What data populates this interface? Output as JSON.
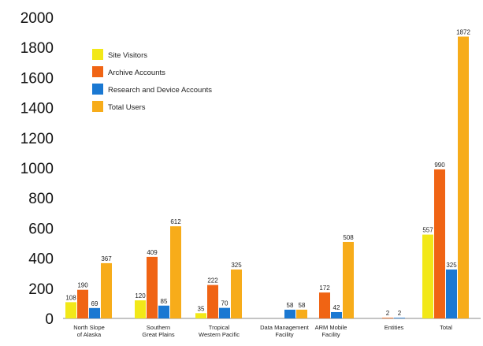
{
  "chart_data": {
    "type": "bar",
    "categories": [
      [
        "North Slope",
        "of Alaska"
      ],
      [
        "Southern",
        "Great Plains"
      ],
      [
        "Tropical",
        "Western Pacific"
      ],
      [
        "Data Management",
        "Facility"
      ],
      [
        "ARM Mobile",
        "Facility"
      ],
      [
        "Entities"
      ],
      [
        "Total"
      ]
    ],
    "series": [
      {
        "name": "Site Visitors",
        "color": "#f2e818",
        "values": [
          108,
          120,
          35,
          null,
          null,
          null,
          557
        ]
      },
      {
        "name": "Archive Accounts",
        "color": "#f06414",
        "values": [
          190,
          409,
          222,
          null,
          172,
          2,
          990
        ]
      },
      {
        "name": "Research and Device Accounts",
        "color": "#1a78d2",
        "values": [
          69,
          85,
          70,
          58,
          42,
          2,
          325
        ]
      },
      {
        "name": "Total Users",
        "color": "#f7ac1a",
        "values": [
          367,
          612,
          325,
          58,
          508,
          null,
          1872
        ]
      }
    ],
    "yticks": [
      0,
      200,
      400,
      600,
      800,
      1000,
      1200,
      1400,
      1600,
      1800,
      2000
    ],
    "ylim": [
      0,
      2000
    ],
    "legend_position": "top-left",
    "grid": false,
    "title": "",
    "xlabel": "",
    "ylabel": ""
  }
}
